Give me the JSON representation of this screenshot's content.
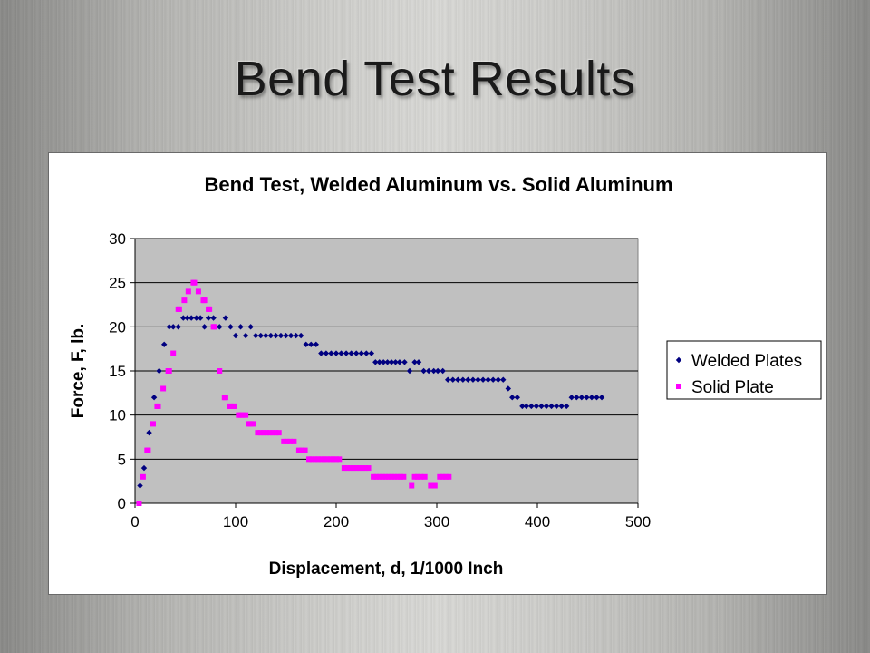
{
  "slide": {
    "title": "Bend Test Results"
  },
  "chart_data": {
    "type": "scatter",
    "title": "Bend Test, Welded Aluminum vs. Solid Aluminum",
    "xlabel": "Displacement, d, 1/1000 Inch",
    "ylabel": "Force, F, lb.",
    "xlim": [
      0,
      500
    ],
    "ylim": [
      0,
      30
    ],
    "xticks": [
      0,
      100,
      200,
      300,
      400,
      500
    ],
    "yticks": [
      0,
      5,
      10,
      15,
      20,
      25,
      30
    ],
    "plot_background": "#c0c0c0",
    "gridlines": "horizontal",
    "legend_position": "right",
    "series": [
      {
        "name": "Welded Plates",
        "marker": "diamond",
        "color": "#000080",
        "points": [
          [
            5,
            2
          ],
          [
            9,
            4
          ],
          [
            14,
            8
          ],
          [
            19,
            12
          ],
          [
            24,
            15
          ],
          [
            29,
            18
          ],
          [
            34,
            20
          ],
          [
            38,
            20
          ],
          [
            43,
            20
          ],
          [
            48,
            21
          ],
          [
            52,
            21
          ],
          [
            56,
            21
          ],
          [
            61,
            21
          ],
          [
            65,
            21
          ],
          [
            69,
            20
          ],
          [
            73,
            21
          ],
          [
            78,
            21
          ],
          [
            84,
            20
          ],
          [
            90,
            21
          ],
          [
            95,
            20
          ],
          [
            100,
            19
          ],
          [
            105,
            20
          ],
          [
            110,
            19
          ],
          [
            115,
            20
          ],
          [
            120,
            19
          ],
          [
            125,
            19
          ],
          [
            130,
            19
          ],
          [
            135,
            19
          ],
          [
            140,
            19
          ],
          [
            145,
            19
          ],
          [
            150,
            19
          ],
          [
            155,
            19
          ],
          [
            160,
            19
          ],
          [
            165,
            19
          ],
          [
            170,
            18
          ],
          [
            175,
            18
          ],
          [
            180,
            18
          ],
          [
            185,
            17
          ],
          [
            190,
            17
          ],
          [
            195,
            17
          ],
          [
            200,
            17
          ],
          [
            205,
            17
          ],
          [
            210,
            17
          ],
          [
            215,
            17
          ],
          [
            220,
            17
          ],
          [
            225,
            17
          ],
          [
            230,
            17
          ],
          [
            235,
            17
          ],
          [
            239,
            16
          ],
          [
            243,
            16
          ],
          [
            247,
            16
          ],
          [
            251,
            16
          ],
          [
            255,
            16
          ],
          [
            259,
            16
          ],
          [
            263,
            16
          ],
          [
            268,
            16
          ],
          [
            273,
            15
          ],
          [
            278,
            16
          ],
          [
            282,
            16
          ],
          [
            287,
            15
          ],
          [
            292,
            15
          ],
          [
            297,
            15
          ],
          [
            301,
            15
          ],
          [
            306,
            15
          ],
          [
            311,
            14
          ],
          [
            316,
            14
          ],
          [
            321,
            14
          ],
          [
            326,
            14
          ],
          [
            331,
            14
          ],
          [
            336,
            14
          ],
          [
            341,
            14
          ],
          [
            346,
            14
          ],
          [
            351,
            14
          ],
          [
            356,
            14
          ],
          [
            361,
            14
          ],
          [
            366,
            14
          ],
          [
            371,
            13
          ],
          [
            375,
            12
          ],
          [
            380,
            12
          ],
          [
            385,
            11
          ],
          [
            389,
            11
          ],
          [
            394,
            11
          ],
          [
            399,
            11
          ],
          [
            404,
            11
          ],
          [
            409,
            11
          ],
          [
            414,
            11
          ],
          [
            419,
            11
          ],
          [
            424,
            11
          ],
          [
            429,
            11
          ],
          [
            434,
            12
          ],
          [
            439,
            12
          ],
          [
            444,
            12
          ],
          [
            449,
            12
          ],
          [
            454,
            12
          ],
          [
            459,
            12
          ],
          [
            464,
            12
          ]
        ]
      },
      {
        "name": "Solid Plate",
        "marker": "square",
        "color": "#ff00ff",
        "points": [
          [
            4,
            0
          ],
          [
            8,
            3
          ],
          [
            12,
            6
          ],
          [
            13,
            6
          ],
          [
            18,
            9
          ],
          [
            22,
            11
          ],
          [
            23,
            11
          ],
          [
            28,
            13
          ],
          [
            33,
            15
          ],
          [
            34,
            15
          ],
          [
            38,
            17
          ],
          [
            43,
            22
          ],
          [
            44,
            22
          ],
          [
            49,
            23
          ],
          [
            53,
            24
          ],
          [
            58,
            25
          ],
          [
            59,
            25
          ],
          [
            63,
            24
          ],
          [
            68,
            23
          ],
          [
            69,
            23
          ],
          [
            73,
            22
          ],
          [
            74,
            22
          ],
          [
            78,
            20
          ],
          [
            79,
            20
          ],
          [
            84,
            15
          ],
          [
            89,
            12
          ],
          [
            90,
            12
          ],
          [
            94,
            11
          ],
          [
            95,
            11
          ],
          [
            98,
            11
          ],
          [
            99,
            11
          ],
          [
            103,
            10
          ],
          [
            105,
            10
          ],
          [
            107,
            10
          ],
          [
            110,
            10
          ],
          [
            113,
            9
          ],
          [
            115,
            9
          ],
          [
            118,
            9
          ],
          [
            122,
            8
          ],
          [
            125,
            8
          ],
          [
            128,
            8
          ],
          [
            131,
            8
          ],
          [
            134,
            8
          ],
          [
            137,
            8
          ],
          [
            140,
            8
          ],
          [
            143,
            8
          ],
          [
            148,
            7
          ],
          [
            151,
            7
          ],
          [
            154,
            7
          ],
          [
            158,
            7
          ],
          [
            163,
            6
          ],
          [
            166,
            6
          ],
          [
            169,
            6
          ],
          [
            173,
            5
          ],
          [
            176,
            5
          ],
          [
            179,
            5
          ],
          [
            182,
            5
          ],
          [
            185,
            5
          ],
          [
            188,
            5
          ],
          [
            191,
            5
          ],
          [
            194,
            5
          ],
          [
            197,
            5
          ],
          [
            200,
            5
          ],
          [
            203,
            5
          ],
          [
            208,
            4
          ],
          [
            211,
            4
          ],
          [
            214,
            4
          ],
          [
            217,
            4
          ],
          [
            220,
            4
          ],
          [
            223,
            4
          ],
          [
            226,
            4
          ],
          [
            229,
            4
          ],
          [
            232,
            4
          ],
          [
            237,
            3
          ],
          [
            240,
            3
          ],
          [
            243,
            3
          ],
          [
            246,
            3
          ],
          [
            249,
            3
          ],
          [
            252,
            3
          ],
          [
            255,
            3
          ],
          [
            258,
            3
          ],
          [
            261,
            3
          ],
          [
            264,
            3
          ],
          [
            267,
            3
          ],
          [
            275,
            2
          ],
          [
            278,
            3
          ],
          [
            281,
            3
          ],
          [
            284,
            3
          ],
          [
            288,
            3
          ],
          [
            294,
            2
          ],
          [
            298,
            2
          ],
          [
            303,
            3
          ],
          [
            306,
            3
          ],
          [
            309,
            3
          ],
          [
            312,
            3
          ]
        ]
      }
    ]
  }
}
